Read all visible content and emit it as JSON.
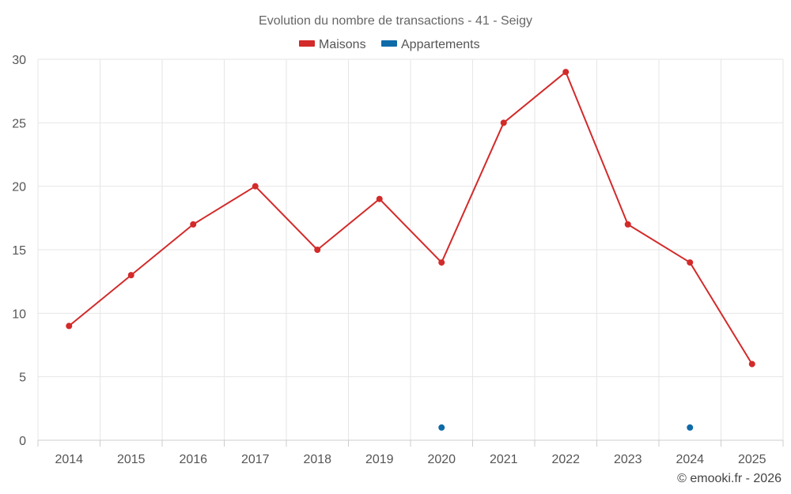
{
  "chart_data": {
    "type": "line",
    "title": "Evolution du nombre de transactions - 41 - Seigy",
    "categories": [
      "2014",
      "2015",
      "2016",
      "2017",
      "2018",
      "2019",
      "2020",
      "2021",
      "2022",
      "2023",
      "2024",
      "2025"
    ],
    "series": [
      {
        "name": "Maisons",
        "color": "#d32a2a",
        "values": [
          9,
          13,
          17,
          20,
          15,
          19,
          14,
          25,
          29,
          17,
          14,
          6
        ]
      },
      {
        "name": "Appartements",
        "color": "#0f6aa8",
        "values": [
          null,
          null,
          null,
          null,
          null,
          null,
          1,
          null,
          null,
          null,
          1,
          null
        ]
      }
    ],
    "yticks": [
      "0",
      "5",
      "10",
      "15",
      "20",
      "25",
      "30"
    ],
    "ylim": [
      0,
      30
    ],
    "xlabel": "",
    "ylabel": "",
    "grid": true,
    "legend_position": "top-center"
  },
  "credit": "© emooki.fr - 2026"
}
